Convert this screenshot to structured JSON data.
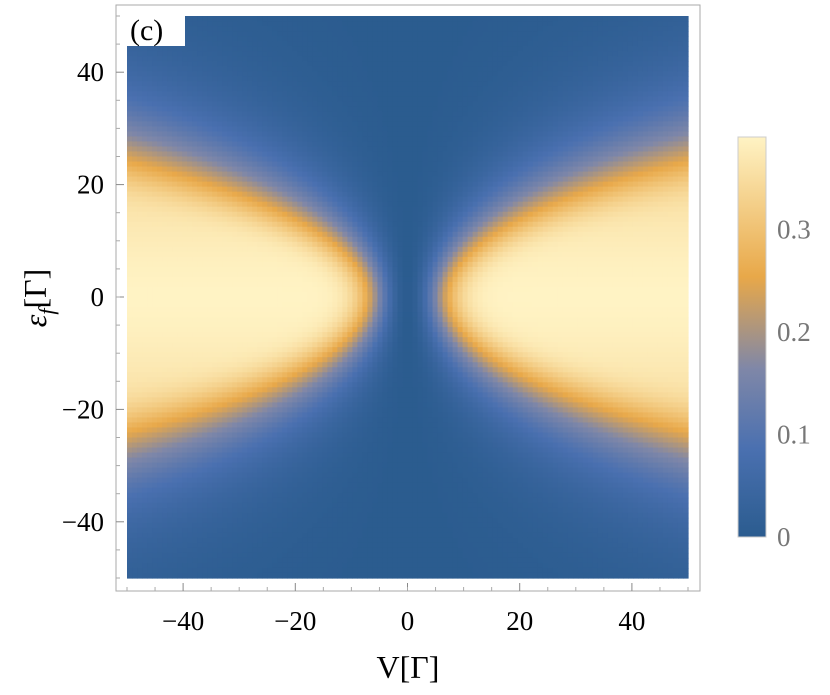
{
  "chart_data": {
    "type": "heatmap",
    "panel_label": "(c)",
    "xlabel": "V[Γ]",
    "ylabel_main": "ε",
    "ylabel_sub": "f",
    "ylabel_suffix": "[Γ]",
    "xlim": [
      -50,
      50
    ],
    "ylim": [
      -50,
      50
    ],
    "x_ticks": [
      -40,
      -20,
      0,
      20,
      40
    ],
    "y_ticks": [
      -40,
      -20,
      0,
      20,
      40
    ],
    "x_tick_labels": [
      "−40",
      "−20",
      "0",
      "20",
      "40"
    ],
    "y_tick_labels": [
      "−40",
      "−20",
      "0",
      "20",
      "40"
    ],
    "colorbar": {
      "range": [
        0,
        0.39
      ],
      "ticks": [
        0,
        0.1,
        0.2,
        0.3
      ],
      "tick_labels": [
        "0",
        "0.1",
        "0.2",
        "0.3"
      ]
    },
    "colormap": [
      "#2b5c8f",
      "#4a70b0",
      "#7f87a8",
      "#e8a849",
      "#fff3c4"
    ],
    "frame_color": "#aaaaaa"
  }
}
